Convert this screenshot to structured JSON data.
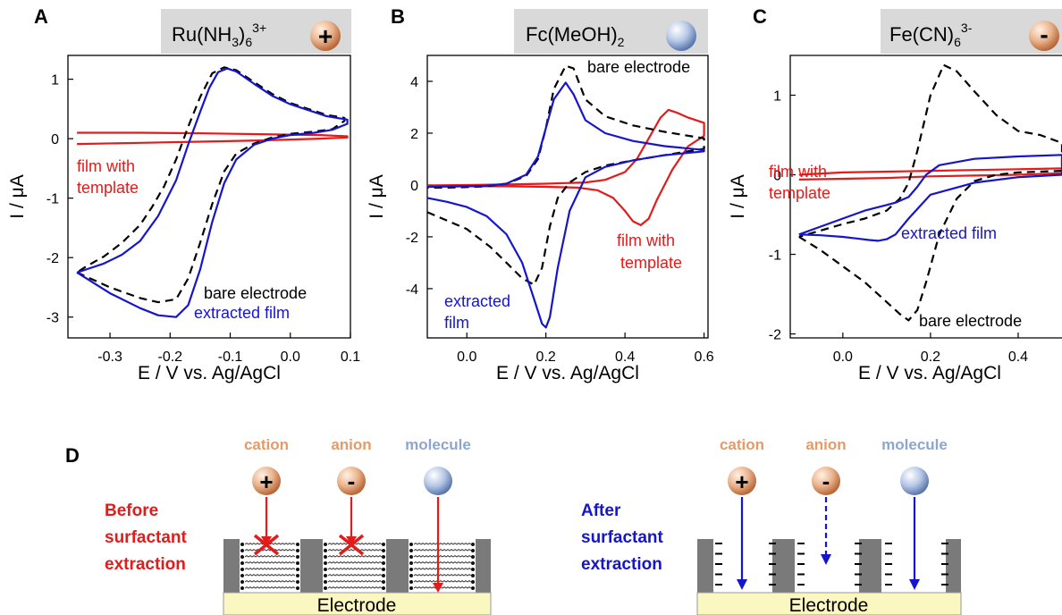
{
  "colors": {
    "bare": "#000000",
    "extracted": "#1515cc",
    "template": "#e21b1b",
    "title_box": "#d9d9d9",
    "cation_label": "#e59a6a",
    "molecule_label": "#8ea6cf",
    "electrode": "#fbf7c0",
    "wall": "#7a7a7a"
  },
  "chart_data": [
    {
      "type": "line",
      "panel": "A",
      "title": "Ru(NH3)6 3+",
      "title_main": "Ru(NH",
      "title_sub1": "3",
      "title_mid": ")",
      "title_sub2": "6",
      "title_sup": "3+",
      "badge": "+",
      "xlabel": "E / V vs. Ag/AgCl",
      "ylabel": "I / μA",
      "xlim": [
        -0.37,
        0.1
      ],
      "ylim": [
        -3.35,
        1.4
      ],
      "xticks": [
        -0.3,
        -0.2,
        -0.1,
        0.0,
        0.1
      ],
      "xtick_labels": [
        "-0.3",
        "-0.2",
        "-0.1",
        "0.0",
        "0.1"
      ],
      "yticks": [
        -3,
        -2,
        -1,
        0,
        1
      ],
      "ytick_labels": [
        "-3",
        "-2",
        "-1",
        "0",
        "1"
      ],
      "series": [
        {
          "name": "bare electrode",
          "style": "dashed",
          "x": [
            -0.355,
            -0.3,
            -0.25,
            -0.22,
            -0.19,
            -0.17,
            -0.15,
            -0.13,
            -0.11,
            -0.09,
            -0.06,
            -0.03,
            0.0,
            0.04,
            0.07,
            0.09,
            0.09,
            0.06,
            0.03,
            0.0,
            -0.03,
            -0.06,
            -0.09,
            -0.11,
            -0.13,
            -0.15,
            -0.17,
            -0.19,
            -0.21,
            -0.23,
            -0.25,
            -0.28,
            -0.31,
            -0.34,
            -0.355
          ],
          "y": [
            -2.25,
            -2.5,
            -2.68,
            -2.75,
            -2.7,
            -2.35,
            -1.75,
            -1.1,
            -0.55,
            -0.25,
            -0.08,
            0.02,
            0.08,
            0.12,
            0.16,
            0.3,
            0.35,
            0.4,
            0.5,
            0.6,
            0.75,
            0.95,
            1.15,
            1.2,
            1.1,
            0.7,
            0.2,
            -0.35,
            -0.8,
            -1.15,
            -1.45,
            -1.75,
            -1.98,
            -2.15,
            -2.25
          ]
        },
        {
          "name": "extracted film",
          "style": "solid",
          "x": [
            -0.355,
            -0.3,
            -0.25,
            -0.22,
            -0.19,
            -0.17,
            -0.15,
            -0.13,
            -0.11,
            -0.09,
            -0.06,
            -0.03,
            0.0,
            0.04,
            0.07,
            0.095,
            0.095,
            0.06,
            0.03,
            0.0,
            -0.03,
            -0.06,
            -0.09,
            -0.105,
            -0.12,
            -0.135,
            -0.15,
            -0.17,
            -0.19,
            -0.22,
            -0.25,
            -0.28,
            -0.31,
            -0.34,
            -0.355
          ],
          "y": [
            -2.25,
            -2.6,
            -2.85,
            -2.97,
            -3.0,
            -2.8,
            -2.2,
            -1.4,
            -0.75,
            -0.35,
            -0.1,
            0.0,
            0.06,
            0.1,
            0.15,
            0.25,
            0.32,
            0.38,
            0.48,
            0.58,
            0.72,
            0.92,
            1.13,
            1.18,
            1.12,
            0.85,
            0.45,
            -0.1,
            -0.7,
            -1.3,
            -1.72,
            -1.95,
            -2.1,
            -2.2,
            -2.25
          ]
        },
        {
          "name": "film with template",
          "style": "solid",
          "x": [
            -0.355,
            -0.25,
            -0.15,
            -0.05,
            0.05,
            0.095,
            0.095,
            0.05,
            -0.05,
            -0.15,
            -0.25,
            -0.355
          ],
          "y": [
            -0.09,
            -0.07,
            -0.05,
            -0.03,
            0.0,
            0.02,
            0.04,
            0.06,
            0.075,
            0.09,
            0.1,
            0.1
          ]
        }
      ],
      "annotations": [
        {
          "text": "film with",
          "color": "template"
        },
        {
          "text": "template",
          "color": "template"
        },
        {
          "text": "bare electrode",
          "color": "bare"
        },
        {
          "text": "extracted film",
          "color": "extracted"
        }
      ]
    },
    {
      "type": "line",
      "panel": "B",
      "title": "Fc(MeOH)2",
      "title_main": "Fc(MeOH)",
      "title_sub1": "2",
      "xlabel": "E / V vs. Ag/AgCl",
      "ylabel": "I / μA",
      "xlim": [
        -0.1,
        0.61
      ],
      "ylim": [
        -5.9,
        5.0
      ],
      "xticks": [
        0.0,
        0.2,
        0.4,
        0.6
      ],
      "xtick_labels": [
        "0.0",
        "0.2",
        "0.4",
        "0.6"
      ],
      "yticks": [
        -4,
        -2,
        0,
        2,
        4
      ],
      "ytick_labels": [
        "-4",
        "-2",
        "0",
        "2",
        "4"
      ],
      "series": [
        {
          "name": "bare electrode",
          "style": "dashed",
          "x": [
            -0.1,
            0.0,
            0.06,
            0.1,
            0.14,
            0.17,
            0.19,
            0.21,
            0.23,
            0.26,
            0.3,
            0.35,
            0.42,
            0.5,
            0.6,
            0.6,
            0.5,
            0.42,
            0.35,
            0.3,
            0.27,
            0.25,
            0.22,
            0.2,
            0.18,
            0.15,
            0.1,
            0.05,
            0.0,
            -0.05,
            -0.1
          ],
          "y": [
            -1.05,
            -1.7,
            -2.4,
            -3.0,
            -3.6,
            -3.85,
            -3.2,
            -1.6,
            -0.5,
            0.1,
            0.5,
            0.75,
            0.95,
            1.15,
            1.4,
            1.8,
            2.05,
            2.3,
            2.65,
            3.3,
            4.5,
            4.6,
            3.7,
            2.2,
            1.0,
            0.35,
            0.05,
            -0.05,
            -0.08,
            -0.1,
            -0.1
          ]
        },
        {
          "name": "extracted film",
          "style": "solid",
          "x": [
            -0.1,
            -0.05,
            0.0,
            0.05,
            0.1,
            0.14,
            0.17,
            0.19,
            0.2,
            0.21,
            0.23,
            0.26,
            0.3,
            0.35,
            0.42,
            0.5,
            0.6,
            0.6,
            0.5,
            0.42,
            0.35,
            0.3,
            0.27,
            0.25,
            0.22,
            0.2,
            0.18,
            0.15,
            0.1,
            0.05,
            0.0,
            -0.05,
            -0.1
          ],
          "y": [
            -0.5,
            -0.65,
            -0.85,
            -1.2,
            -1.9,
            -3.0,
            -4.4,
            -5.35,
            -5.5,
            -5.1,
            -3.2,
            -1.0,
            0.3,
            0.7,
            0.95,
            1.15,
            1.3,
            1.35,
            1.5,
            1.7,
            2.0,
            2.5,
            3.5,
            3.95,
            3.3,
            2.2,
            1.1,
            0.4,
            0.05,
            -0.03,
            -0.05,
            -0.06,
            -0.07
          ]
        },
        {
          "name": "film with template",
          "style": "solid",
          "x": [
            -0.1,
            0.1,
            0.2,
            0.28,
            0.33,
            0.37,
            0.4,
            0.42,
            0.44,
            0.46,
            0.48,
            0.52,
            0.56,
            0.6,
            0.6,
            0.56,
            0.53,
            0.51,
            0.49,
            0.46,
            0.43,
            0.4,
            0.35,
            0.3,
            0.2,
            0.1,
            0.0,
            -0.1
          ],
          "y": [
            -0.05,
            -0.05,
            -0.07,
            -0.1,
            -0.2,
            -0.5,
            -1.0,
            -1.4,
            -1.55,
            -1.3,
            -0.6,
            0.6,
            1.5,
            1.9,
            2.4,
            2.6,
            2.8,
            2.9,
            2.6,
            1.8,
            1.0,
            0.5,
            0.2,
            0.1,
            0.05,
            0.02,
            0.0,
            -0.02
          ]
        }
      ],
      "annotations": [
        {
          "text": "bare electrode",
          "color": "bare"
        },
        {
          "text": "film with",
          "color": "template"
        },
        {
          "text": "template",
          "color": "template"
        },
        {
          "text": "extracted",
          "color": "extracted"
        },
        {
          "text": "film",
          "color": "extracted"
        }
      ]
    },
    {
      "type": "line",
      "panel": "C",
      "title": "Fe(CN)6 3-",
      "title_main": "Fe(CN)",
      "title_sub1": "6",
      "title_sup": "3-",
      "badge": "-",
      "xlabel": "E / V vs. Ag/AgCl",
      "ylabel": "I / μA",
      "xlim": [
        -0.12,
        0.5
      ],
      "ylim": [
        -2.05,
        1.5
      ],
      "xticks": [
        0.0,
        0.2,
        0.4
      ],
      "xtick_labels": [
        "0.0",
        "0.2",
        "0.4"
      ],
      "yticks": [
        -2,
        -1,
        0,
        1
      ],
      "ytick_labels": [
        "-2",
        "-1",
        "0",
        "1"
      ],
      "series": [
        {
          "name": "bare electrode",
          "style": "dashed",
          "x": [
            -0.1,
            -0.05,
            0.0,
            0.05,
            0.1,
            0.13,
            0.15,
            0.17,
            0.19,
            0.22,
            0.26,
            0.3,
            0.35,
            0.4,
            0.5,
            0.5,
            0.45,
            0.4,
            0.35,
            0.3,
            0.26,
            0.23,
            0.2,
            0.17,
            0.15,
            0.13,
            0.1,
            0.05,
            0.0,
            -0.05,
            -0.1
          ],
          "y": [
            -0.78,
            -0.95,
            -1.15,
            -1.35,
            -1.6,
            -1.75,
            -1.83,
            -1.7,
            -1.35,
            -0.75,
            -0.3,
            -0.08,
            0.0,
            0.03,
            0.05,
            0.4,
            0.5,
            0.55,
            0.75,
            1.05,
            1.3,
            1.38,
            1.0,
            0.3,
            -0.1,
            -0.3,
            -0.45,
            -0.55,
            -0.62,
            -0.7,
            -0.78
          ]
        },
        {
          "name": "extracted film",
          "style": "solid",
          "x": [
            -0.1,
            -0.05,
            0.0,
            0.03,
            0.06,
            0.08,
            0.1,
            0.12,
            0.15,
            0.2,
            0.3,
            0.4,
            0.5,
            0.5,
            0.4,
            0.3,
            0.22,
            0.19,
            0.17,
            0.15,
            0.12,
            0.1,
            0.05,
            0.0,
            -0.05,
            -0.1
          ],
          "y": [
            -0.75,
            -0.76,
            -0.78,
            -0.8,
            -0.82,
            -0.83,
            -0.81,
            -0.75,
            -0.55,
            -0.25,
            -0.1,
            -0.03,
            0.0,
            0.25,
            0.23,
            0.2,
            0.12,
            0.0,
            -0.15,
            -0.28,
            -0.35,
            -0.38,
            -0.45,
            -0.55,
            -0.65,
            -0.75
          ]
        },
        {
          "name": "film with template",
          "style": "solid",
          "x": [
            -0.1,
            0.0,
            0.1,
            0.2,
            0.3,
            0.4,
            0.5,
            0.5,
            0.4,
            0.3,
            0.2,
            0.1,
            0.0,
            -0.1
          ],
          "y": [
            -0.06,
            -0.05,
            -0.04,
            -0.02,
            -0.01,
            0.0,
            0.02,
            0.08,
            0.07,
            0.06,
            0.05,
            0.04,
            0.03,
            0.0
          ]
        }
      ],
      "annotations": [
        {
          "text": "film with",
          "color": "template"
        },
        {
          "text": "template",
          "color": "template"
        },
        {
          "text": "extracted film",
          "color": "extracted"
        },
        {
          "text": "bare electrode",
          "color": "bare"
        }
      ]
    }
  ],
  "panel_d": {
    "letter": "D",
    "before_label": [
      "Before",
      "surfactant",
      "extraction"
    ],
    "after_label": [
      "After",
      "surfactant",
      "extraction"
    ],
    "species": [
      {
        "label": "cation",
        "symbol": "+"
      },
      {
        "label": "anion",
        "symbol": "-"
      },
      {
        "label": "molecule",
        "symbol": ""
      }
    ],
    "electrode_label": "Electrode"
  }
}
